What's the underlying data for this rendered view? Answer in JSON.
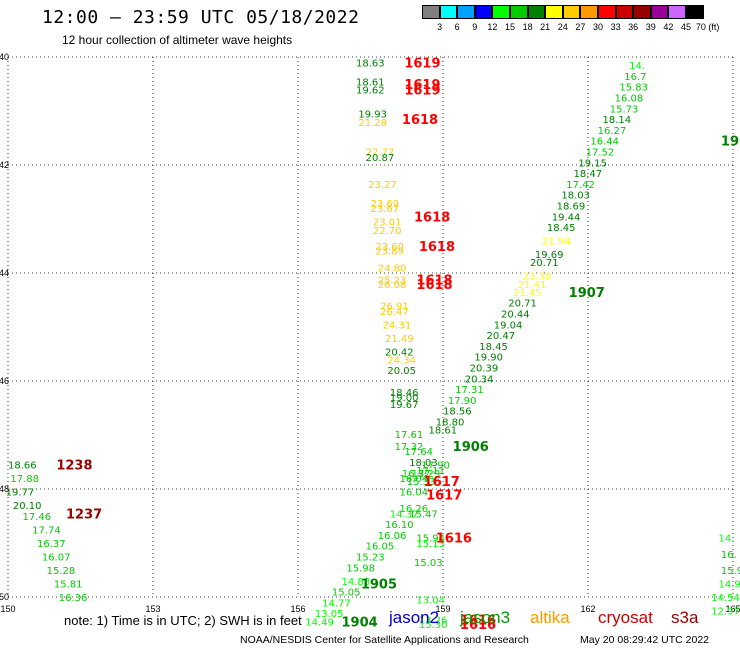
{
  "header": {
    "title": "12:00 – 23:59 UTC 05/18/2022",
    "subtitle": "12 hour collection of altimeter wave heights"
  },
  "color_scale": {
    "labels": [
      "3",
      "6",
      "9",
      "12",
      "15",
      "18",
      "21",
      "24",
      "27",
      "30",
      "33",
      "36",
      "39",
      "42",
      "45",
      "70 (ft)"
    ],
    "colors": [
      "#808080",
      "#00ffff",
      "#00a0ff",
      "#0000ff",
      "#00ff00",
      "#00cc00",
      "#008000",
      "#ffff00",
      "#ffcc00",
      "#ff9900",
      "#ff0000",
      "#cc0000",
      "#990000",
      "#990099",
      "#cc66ff",
      "#000000"
    ]
  },
  "note": "note: 1) Time is in UTC; 2) SWH is in feet",
  "legend": [
    {
      "name": "jason2",
      "color": "#0000cc"
    },
    {
      "name": "jason3",
      "color": "#009900"
    },
    {
      "name": "altika",
      "color": "#ff9900"
    },
    {
      "name": "cryosat",
      "color": "#cc0000"
    },
    {
      "name": "s3a",
      "color": "#990000"
    }
  ],
  "footer": {
    "credit": "NOAA/NESDIS Center for Satellite Applications and Research",
    "timestamp": "May 20 08:29:42 UTC 2022"
  },
  "chart_data": {
    "type": "scatter",
    "title": "12:00 – 23:59 UTC 05/18/2022",
    "subtitle": "12 hour collection of altimeter wave heights",
    "xlim": [
      150,
      165
    ],
    "ylim": [
      -50,
      -40
    ],
    "x_ticks": [
      "150",
      "153",
      "156",
      "159",
      "162",
      "165"
    ],
    "y_ticks": [
      "-40",
      "-42",
      "-44",
      "-46",
      "-48",
      "-50"
    ],
    "grid": true,
    "points": [
      {
        "x": 157.2,
        "y": -40.1,
        "label": "18.63",
        "c": "#008000"
      },
      {
        "x": 157.2,
        "y": -40.45,
        "label": "18.61",
        "c": "#008000"
      },
      {
        "x": 157.2,
        "y": -40.6,
        "label": "19.62",
        "c": "#008000"
      },
      {
        "x": 157.25,
        "y": -41.05,
        "label": "19.93",
        "c": "#008000"
      },
      {
        "x": 157.25,
        "y": -41.2,
        "label": "21.28",
        "c": "#ffcc00"
      },
      {
        "x": 157.4,
        "y": -41.75,
        "label": "22.77",
        "c": "#ffcc00"
      },
      {
        "x": 157.4,
        "y": -41.85,
        "label": "20.87",
        "c": "#008000"
      },
      {
        "x": 157.45,
        "y": -42.35,
        "label": "23.27",
        "c": "#ffcc00"
      },
      {
        "x": 157.5,
        "y": -42.7,
        "label": "23.69",
        "c": "#ffcc00"
      },
      {
        "x": 157.5,
        "y": -42.8,
        "label": "23.67",
        "c": "#ffcc00"
      },
      {
        "x": 157.55,
        "y": -43.05,
        "label": "23.01",
        "c": "#ffcc00"
      },
      {
        "x": 157.55,
        "y": -43.2,
        "label": "22.70",
        "c": "#ffcc00"
      },
      {
        "x": 157.6,
        "y": -43.5,
        "label": "23.60",
        "c": "#ffcc00"
      },
      {
        "x": 157.6,
        "y": -43.58,
        "label": "23.89",
        "c": "#ffcc00"
      },
      {
        "x": 157.65,
        "y": -43.9,
        "label": "24.80",
        "c": "#ffcc00"
      },
      {
        "x": 157.65,
        "y": -44.12,
        "label": "25.23",
        "c": "#ffcc00"
      },
      {
        "x": 157.65,
        "y": -44.2,
        "label": "26.08",
        "c": "#ffcc00"
      },
      {
        "x": 157.7,
        "y": -44.6,
        "label": "26.91",
        "c": "#ffcc00"
      },
      {
        "x": 157.7,
        "y": -44.7,
        "label": "26.47",
        "c": "#ffcc00"
      },
      {
        "x": 157.75,
        "y": -44.95,
        "label": "24.31",
        "c": "#ffcc00"
      },
      {
        "x": 157.8,
        "y": -45.2,
        "label": "21.49",
        "c": "#ffcc00"
      },
      {
        "x": 157.8,
        "y": -45.45,
        "label": "20.42",
        "c": "#008000"
      },
      {
        "x": 157.85,
        "y": -45.6,
        "label": "24.34",
        "c": "#ffcc00"
      },
      {
        "x": 157.85,
        "y": -45.8,
        "label": "20.05",
        "c": "#008000"
      },
      {
        "x": 157.9,
        "y": -46.2,
        "label": "18.46",
        "c": "#008000"
      },
      {
        "x": 157.9,
        "y": -46.3,
        "label": "19.00",
        "c": "#008000"
      },
      {
        "x": 157.9,
        "y": -46.43,
        "label": "19.67",
        "c": "#008000"
      },
      {
        "x": 158.0,
        "y": -46.98,
        "label": "17.61",
        "c": "#00cc00"
      },
      {
        "x": 158.0,
        "y": -47.2,
        "label": "17.32",
        "c": "#00cc00"
      },
      {
        "x": 158.2,
        "y": -47.3,
        "label": "17.64",
        "c": "#00cc00"
      },
      {
        "x": 158.3,
        "y": -47.5,
        "label": "18.03",
        "c": "#008000"
      },
      {
        "x": 158.15,
        "y": -47.7,
        "label": "16.37",
        "c": "#00cc00"
      },
      {
        "x": 158.35,
        "y": -47.7,
        "label": "17.29",
        "c": "#00cc00"
      },
      {
        "x": 158.1,
        "y": -47.8,
        "label": "16.04",
        "c": "#00cc00"
      },
      {
        "x": 158.25,
        "y": -47.85,
        "label": "15.33",
        "c": "#00cc00"
      },
      {
        "x": 158.1,
        "y": -48.05,
        "label": "16.04",
        "c": "#00cc00"
      },
      {
        "x": 158.1,
        "y": -48.35,
        "label": "16.26",
        "c": "#00cc00"
      },
      {
        "x": 157.9,
        "y": -48.45,
        "label": "14.37",
        "c": "#00ff00"
      },
      {
        "x": 158.3,
        "y": -48.45,
        "label": "15.47",
        "c": "#00cc00"
      },
      {
        "x": 157.8,
        "y": -48.65,
        "label": "16.10",
        "c": "#00cc00"
      },
      {
        "x": 157.65,
        "y": -48.85,
        "label": "16.06",
        "c": "#00cc00"
      },
      {
        "x": 157.4,
        "y": -49.05,
        "label": "16.05",
        "c": "#00cc00"
      },
      {
        "x": 158.45,
        "y": -48.9,
        "label": "15.94",
        "c": "#00cc00"
      },
      {
        "x": 158.45,
        "y": -49.0,
        "label": "15.13",
        "c": "#00ff00"
      },
      {
        "x": 158.4,
        "y": -49.35,
        "label": "15.03",
        "c": "#00cc00"
      },
      {
        "x": 157.2,
        "y": -49.25,
        "label": "15.23",
        "c": "#00cc00"
      },
      {
        "x": 157.0,
        "y": -49.45,
        "label": "15.98",
        "c": "#00cc00"
      },
      {
        "x": 156.9,
        "y": -49.7,
        "label": "14.88",
        "c": "#00ff00"
      },
      {
        "x": 156.7,
        "y": -49.9,
        "label": "15.05",
        "c": "#00cc00"
      },
      {
        "x": 156.5,
        "y": -50.1,
        "label": "14.77",
        "c": "#00ff00"
      },
      {
        "x": 156.35,
        "y": -50.3,
        "label": "13.05",
        "c": "#00ff00"
      },
      {
        "x": 156.15,
        "y": -50.45,
        "label": "14.49",
        "c": "#00ff00"
      },
      {
        "x": 158.45,
        "y": -50.05,
        "label": "13.04",
        "c": "#00ff00"
      },
      {
        "x": 158.5,
        "y": -50.42,
        "label": "13.26",
        "c": "#00ff00"
      },
      {
        "x": 158.5,
        "y": -50.5,
        "label": "15.30",
        "c": "#00ff00"
      },
      {
        "x": 158.45,
        "y": -47.65,
        "label": "17.11",
        "c": "#00cc00"
      },
      {
        "x": 158.55,
        "y": -47.55,
        "label": "17.90",
        "c": "#00cc00"
      },
      {
        "x": 158.7,
        "y": -46.9,
        "label": "18.61",
        "c": "#008000"
      },
      {
        "x": 158.85,
        "y": -46.75,
        "label": "18.80",
        "c": "#008000"
      },
      {
        "x": 159.0,
        "y": -46.55,
        "label": "18.56",
        "c": "#008000"
      },
      {
        "x": 159.1,
        "y": -46.35,
        "label": "17.90",
        "c": "#00cc00"
      },
      {
        "x": 159.25,
        "y": -46.15,
        "label": "17.31",
        "c": "#00cc00"
      },
      {
        "x": 159.45,
        "y": -45.95,
        "label": "20.34",
        "c": "#008000"
      },
      {
        "x": 159.55,
        "y": -45.75,
        "label": "20.39",
        "c": "#008000"
      },
      {
        "x": 159.65,
        "y": -45.55,
        "label": "19.90",
        "c": "#008000"
      },
      {
        "x": 159.75,
        "y": -45.35,
        "label": "18.45",
        "c": "#008000"
      },
      {
        "x": 159.9,
        "y": -45.15,
        "label": "20.47",
        "c": "#008000"
      },
      {
        "x": 160.05,
        "y": -44.95,
        "label": "19.04",
        "c": "#008000"
      },
      {
        "x": 160.2,
        "y": -44.75,
        "label": "20.44",
        "c": "#008000"
      },
      {
        "x": 160.35,
        "y": -44.55,
        "label": "20.71",
        "c": "#008000"
      },
      {
        "x": 160.45,
        "y": -44.35,
        "label": "21.45",
        "c": "#ffff00"
      },
      {
        "x": 160.55,
        "y": -44.2,
        "label": "21.41",
        "c": "#ffff00"
      },
      {
        "x": 160.65,
        "y": -44.05,
        "label": "23.30",
        "c": "#ffff00"
      },
      {
        "x": 160.8,
        "y": -43.8,
        "label": "20.71",
        "c": "#008000"
      },
      {
        "x": 160.9,
        "y": -43.65,
        "label": "19.69",
        "c": "#008000"
      },
      {
        "x": 161.05,
        "y": -43.4,
        "label": "21.94",
        "c": "#ffff00"
      },
      {
        "x": 161.15,
        "y": -43.15,
        "label": "18.45",
        "c": "#008000"
      },
      {
        "x": 161.25,
        "y": -42.95,
        "label": "19.44",
        "c": "#008000"
      },
      {
        "x": 161.35,
        "y": -42.75,
        "label": "18.69",
        "c": "#008000"
      },
      {
        "x": 161.45,
        "y": -42.55,
        "label": "18.03",
        "c": "#008000"
      },
      {
        "x": 161.55,
        "y": -42.35,
        "label": "17.42",
        "c": "#00cc00"
      },
      {
        "x": 161.7,
        "y": -42.15,
        "label": "18.47",
        "c": "#008000"
      },
      {
        "x": 161.8,
        "y": -41.95,
        "label": "19.15",
        "c": "#008000"
      },
      {
        "x": 161.95,
        "y": -41.75,
        "label": "17.52",
        "c": "#00cc00"
      },
      {
        "x": 162.05,
        "y": -41.55,
        "label": "16.44",
        "c": "#00cc00"
      },
      {
        "x": 162.2,
        "y": -41.35,
        "label": "16.27",
        "c": "#00cc00"
      },
      {
        "x": 162.3,
        "y": -41.15,
        "label": "18.14",
        "c": "#008000"
      },
      {
        "x": 162.45,
        "y": -40.95,
        "label": "15.73",
        "c": "#00cc00"
      },
      {
        "x": 162.55,
        "y": -40.75,
        "label": "16.08",
        "c": "#00cc00"
      },
      {
        "x": 162.65,
        "y": -40.55,
        "label": "15.83",
        "c": "#00cc00"
      },
      {
        "x": 162.75,
        "y": -40.35,
        "label": "16.7",
        "c": "#00cc00"
      },
      {
        "x": 162.85,
        "y": -40.15,
        "label": "14.",
        "c": "#00ff00"
      },
      {
        "x": 150.0,
        "y": -47.55,
        "label": "18.66",
        "c": "#008000"
      },
      {
        "x": 150.05,
        "y": -47.8,
        "label": "17.88",
        "c": "#00cc00"
      },
      {
        "x": 149.95,
        "y": -48.05,
        "label": "19.77",
        "c": "#008000"
      },
      {
        "x": 150.1,
        "y": -48.3,
        "label": "20.10",
        "c": "#008000"
      },
      {
        "x": 150.3,
        "y": -48.5,
        "label": "17.46",
        "c": "#00cc00"
      },
      {
        "x": 150.5,
        "y": -48.75,
        "label": "17.74",
        "c": "#00cc00"
      },
      {
        "x": 150.6,
        "y": -49.0,
        "label": "16.37",
        "c": "#00cc00"
      },
      {
        "x": 150.7,
        "y": -49.25,
        "label": "16.07",
        "c": "#00cc00"
      },
      {
        "x": 150.8,
        "y": -49.5,
        "label": "15.28",
        "c": "#00cc00"
      },
      {
        "x": 150.95,
        "y": -49.75,
        "label": "15.81",
        "c": "#00cc00"
      },
      {
        "x": 151.05,
        "y": -50.0,
        "label": "16.36",
        "c": "#00cc00"
      },
      {
        "x": 164.7,
        "y": -48.9,
        "label": "14.",
        "c": "#00ff00"
      },
      {
        "x": 164.75,
        "y": -49.2,
        "label": "16.",
        "c": "#00cc00"
      },
      {
        "x": 164.75,
        "y": -49.5,
        "label": "15.9",
        "c": "#00cc00"
      },
      {
        "x": 164.7,
        "y": -49.75,
        "label": "14.9",
        "c": "#00ff00"
      },
      {
        "x": 164.55,
        "y": -50.0,
        "label": "14.54",
        "c": "#00ff00"
      },
      {
        "x": 164.55,
        "y": -50.25,
        "label": "12.97",
        "c": "#00ff00"
      }
    ],
    "passes": [
      {
        "x": 158.2,
        "y": -40.1,
        "label": "1619",
        "c": "#ff0000"
      },
      {
        "x": 158.2,
        "y": -40.5,
        "label": "1619",
        "c": "#ff0000"
      },
      {
        "x": 158.2,
        "y": -40.6,
        "label": "1619",
        "c": "#ff0000"
      },
      {
        "x": 158.15,
        "y": -41.15,
        "label": "1618",
        "c": "#ff0000"
      },
      {
        "x": 158.4,
        "y": -42.95,
        "label": "1618",
        "c": "#ff0000"
      },
      {
        "x": 158.5,
        "y": -43.5,
        "label": "1618",
        "c": "#ff0000"
      },
      {
        "x": 158.45,
        "y": -44.12,
        "label": "1618",
        "c": "#ff0000"
      },
      {
        "x": 158.45,
        "y": -44.2,
        "label": "1618",
        "c": "#ff0000"
      },
      {
        "x": 158.6,
        "y": -47.85,
        "label": "1617",
        "c": "#ff0000"
      },
      {
        "x": 158.65,
        "y": -48.1,
        "label": "1617",
        "c": "#ff0000"
      },
      {
        "x": 158.85,
        "y": -48.9,
        "label": "1616",
        "c": "#ff0000"
      },
      {
        "x": 159.35,
        "y": -50.42,
        "label": "1616",
        "c": "#ff0000"
      },
      {
        "x": 159.35,
        "y": -50.5,
        "label": "1616",
        "c": "#ff0000"
      },
      {
        "x": 161.6,
        "y": -44.35,
        "label": "1907",
        "c": "#008000"
      },
      {
        "x": 159.2,
        "y": -47.2,
        "label": "1906",
        "c": "#008000"
      },
      {
        "x": 157.3,
        "y": -49.75,
        "label": "1905",
        "c": "#008000"
      },
      {
        "x": 156.9,
        "y": -50.45,
        "label": "1904",
        "c": "#008000"
      },
      {
        "x": 164.75,
        "y": -41.55,
        "label": "19",
        "c": "#008000"
      },
      {
        "x": 151.0,
        "y": -47.55,
        "label": "1238",
        "c": "#990000"
      },
      {
        "x": 151.2,
        "y": -48.45,
        "label": "1237",
        "c": "#990000"
      }
    ]
  }
}
